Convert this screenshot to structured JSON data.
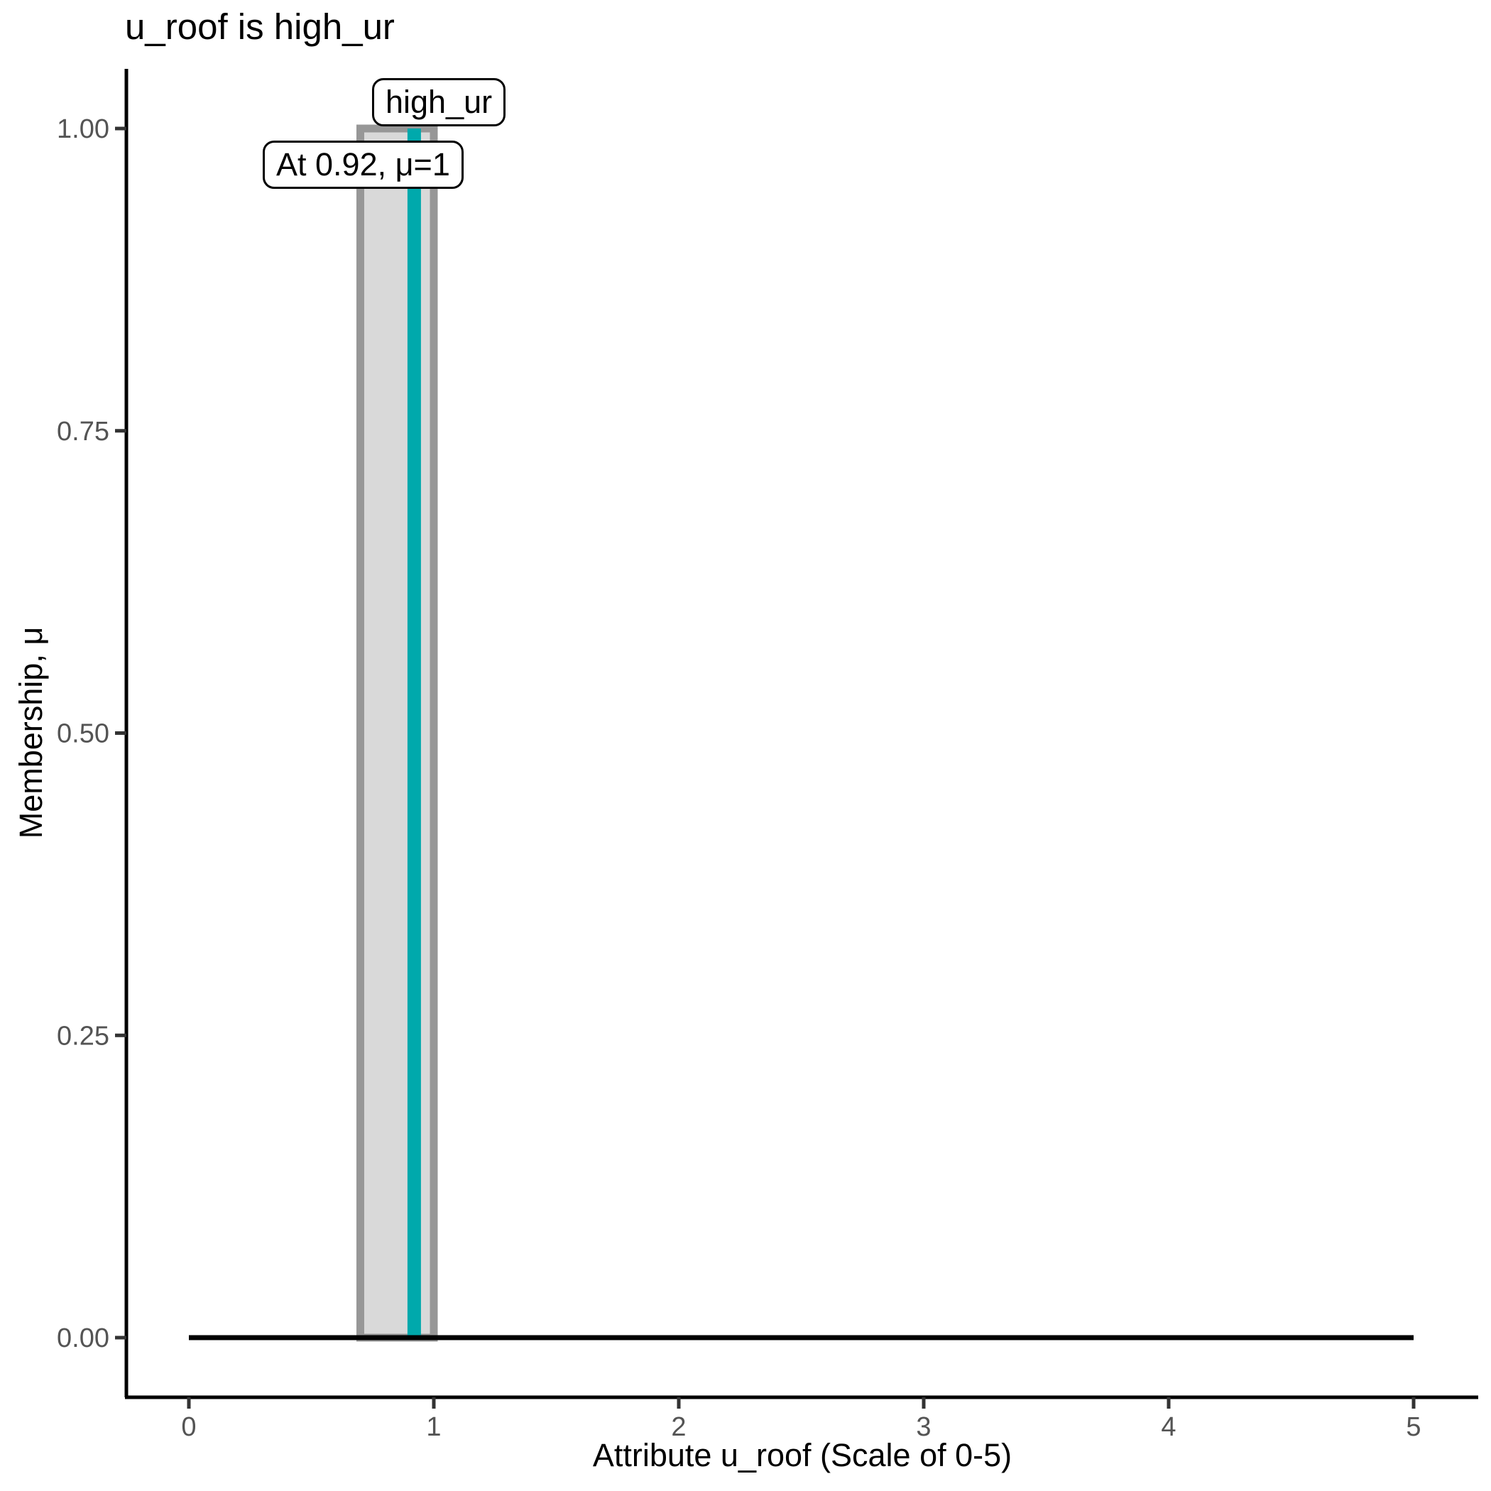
{
  "figure": {
    "title": "u_roof is high_ur",
    "background_color": "#FFFFFF"
  },
  "chart_data": {
    "type": "area",
    "title": "u_roof is high_ur",
    "xlabel": "Attribute u_roof (Scale of 0-5)",
    "ylabel": "Membership, μ",
    "xlim": [
      0,
      5
    ],
    "ylim": [
      0,
      1
    ],
    "x_ticks": [
      0,
      1,
      2,
      3,
      4,
      5
    ],
    "x_tick_labels": [
      "0",
      "1",
      "2",
      "3",
      "4",
      "5"
    ],
    "y_ticks": [
      0.0,
      0.25,
      0.5,
      0.75,
      1.0
    ],
    "y_tick_labels": [
      "0.00",
      "0.25",
      "0.50",
      "0.75",
      "1.00"
    ],
    "grid": false,
    "legend_position": "none",
    "series": [
      {
        "name": "high_ur",
        "shape": "rectangle",
        "x_start": 0.7,
        "x_end": 1.0,
        "mu": 1.0,
        "fill_color": "#D9D9D9",
        "border_color": "#979797"
      }
    ],
    "marker": {
      "x": 0.92,
      "mu": 1,
      "color": "#00A9AC",
      "label": "At 0.92, μ=1"
    },
    "baseline": {
      "y": 0,
      "x_start": 0,
      "x_end": 5,
      "color": "#000000"
    },
    "annotations": [
      {
        "text": "high_ur"
      },
      {
        "text": "At 0.92, μ=1"
      }
    ],
    "colors": {
      "axis_line": "#000000",
      "tick_mark": "#333333",
      "tick_label": "#545454",
      "text": "#000000"
    }
  }
}
